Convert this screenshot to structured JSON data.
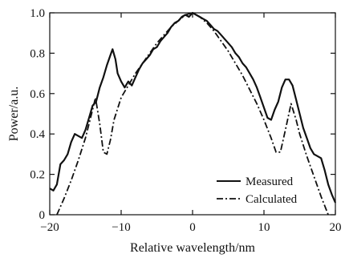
{
  "chart_data": {
    "type": "line",
    "title": "",
    "xlabel": "Relative wavelength/nm",
    "ylabel": "Power/a.u.",
    "xlim": [
      -20,
      20
    ],
    "ylim": [
      0,
      1.0
    ],
    "xticks": [
      -20,
      -10,
      0,
      10,
      20
    ],
    "xtick_labels": [
      "−20",
      "−10",
      "0",
      "10",
      "20"
    ],
    "yticks": [
      0,
      0.2,
      0.4,
      0.6,
      0.8,
      1.0
    ],
    "ytick_labels": [
      "0",
      "0.2",
      "0.4",
      "0.6",
      "0.8",
      "1.0"
    ],
    "grid": false,
    "legend_position": "bottom-right",
    "series": [
      {
        "name": "Measured",
        "style": "solid",
        "color": "#111111",
        "points": [
          [
            -20,
            0.13
          ],
          [
            -19.5,
            0.12
          ],
          [
            -19,
            0.15
          ],
          [
            -18.5,
            0.25
          ],
          [
            -18,
            0.27
          ],
          [
            -17.5,
            0.3
          ],
          [
            -17,
            0.36
          ],
          [
            -16.5,
            0.4
          ],
          [
            -16,
            0.39
          ],
          [
            -15.5,
            0.38
          ],
          [
            -15,
            0.42
          ],
          [
            -14.5,
            0.48
          ],
          [
            -14,
            0.54
          ],
          [
            -13.5,
            0.56
          ],
          [
            -13,
            0.63
          ],
          [
            -12.5,
            0.68
          ],
          [
            -12,
            0.74
          ],
          [
            -11.5,
            0.79
          ],
          [
            -11.2,
            0.82
          ],
          [
            -10.8,
            0.77
          ],
          [
            -10.5,
            0.7
          ],
          [
            -10,
            0.66
          ],
          [
            -9.5,
            0.63
          ],
          [
            -9,
            0.66
          ],
          [
            -8.5,
            0.64
          ],
          [
            -8,
            0.68
          ],
          [
            -7.5,
            0.72
          ],
          [
            -7,
            0.75
          ],
          [
            -6.5,
            0.77
          ],
          [
            -6,
            0.79
          ],
          [
            -5.5,
            0.82
          ],
          [
            -5,
            0.83
          ],
          [
            -4.5,
            0.86
          ],
          [
            -4,
            0.88
          ],
          [
            -3.5,
            0.9
          ],
          [
            -3,
            0.93
          ],
          [
            -2.5,
            0.95
          ],
          [
            -2,
            0.96
          ],
          [
            -1.5,
            0.98
          ],
          [
            -1,
            0.99
          ],
          [
            -0.5,
            0.98
          ],
          [
            0,
            1.0
          ],
          [
            0.5,
            0.99
          ],
          [
            1,
            0.98
          ],
          [
            1.5,
            0.97
          ],
          [
            2,
            0.96
          ],
          [
            2.5,
            0.94
          ],
          [
            3,
            0.92
          ],
          [
            3.5,
            0.91
          ],
          [
            4,
            0.89
          ],
          [
            4.5,
            0.87
          ],
          [
            5,
            0.85
          ],
          [
            5.5,
            0.83
          ],
          [
            6,
            0.8
          ],
          [
            6.5,
            0.78
          ],
          [
            7,
            0.75
          ],
          [
            7.5,
            0.73
          ],
          [
            8,
            0.7
          ],
          [
            8.5,
            0.67
          ],
          [
            9,
            0.63
          ],
          [
            9.5,
            0.58
          ],
          [
            10,
            0.53
          ],
          [
            10.5,
            0.48
          ],
          [
            11,
            0.47
          ],
          [
            11.5,
            0.52
          ],
          [
            12,
            0.56
          ],
          [
            12.5,
            0.63
          ],
          [
            13,
            0.67
          ],
          [
            13.5,
            0.67
          ],
          [
            14,
            0.64
          ],
          [
            14.5,
            0.57
          ],
          [
            15,
            0.5
          ],
          [
            15.5,
            0.43
          ],
          [
            16,
            0.38
          ],
          [
            16.5,
            0.33
          ],
          [
            17,
            0.3
          ],
          [
            17.5,
            0.29
          ],
          [
            18,
            0.28
          ],
          [
            18.5,
            0.22
          ],
          [
            19,
            0.15
          ],
          [
            19.5,
            0.1
          ],
          [
            20,
            0.06
          ]
        ]
      },
      {
        "name": "Calculated",
        "style": "dash-dot",
        "color": "#111111",
        "points": [
          [
            -19,
            0.0
          ],
          [
            -18,
            0.08
          ],
          [
            -17,
            0.17
          ],
          [
            -16,
            0.27
          ],
          [
            -15,
            0.38
          ],
          [
            -14,
            0.52
          ],
          [
            -13.6,
            0.58
          ],
          [
            -13,
            0.45
          ],
          [
            -12.5,
            0.31
          ],
          [
            -12,
            0.3
          ],
          [
            -11.5,
            0.37
          ],
          [
            -11,
            0.47
          ],
          [
            -10,
            0.58
          ],
          [
            -9,
            0.64
          ],
          [
            -8,
            0.7
          ],
          [
            -7,
            0.75
          ],
          [
            -6,
            0.8
          ],
          [
            -5,
            0.85
          ],
          [
            -4,
            0.89
          ],
          [
            -3,
            0.93
          ],
          [
            -2,
            0.96
          ],
          [
            -1,
            0.99
          ],
          [
            0,
            1.0
          ],
          [
            1,
            0.98
          ],
          [
            2,
            0.95
          ],
          [
            3,
            0.91
          ],
          [
            4,
            0.86
          ],
          [
            5,
            0.81
          ],
          [
            6,
            0.75
          ],
          [
            7,
            0.69
          ],
          [
            8,
            0.62
          ],
          [
            9,
            0.55
          ],
          [
            10,
            0.47
          ],
          [
            11,
            0.38
          ],
          [
            11.7,
            0.31
          ],
          [
            12.3,
            0.31
          ],
          [
            13,
            0.42
          ],
          [
            13.8,
            0.55
          ],
          [
            14.5,
            0.47
          ],
          [
            15,
            0.4
          ],
          [
            16,
            0.29
          ],
          [
            17,
            0.19
          ],
          [
            18,
            0.09
          ],
          [
            19,
            0.0
          ]
        ]
      }
    ]
  }
}
